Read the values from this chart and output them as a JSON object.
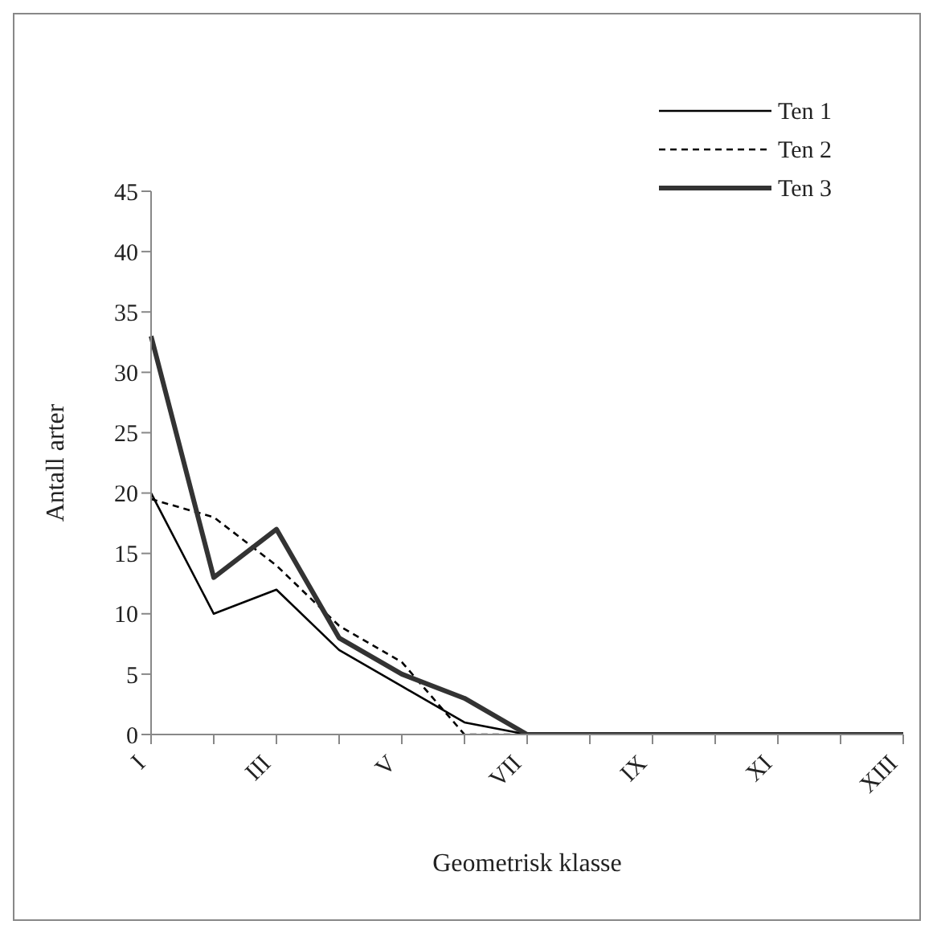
{
  "chart_data": {
    "type": "line",
    "xlabel": "Geometrisk klasse",
    "ylabel": "Antall arter",
    "categories": [
      "I",
      null,
      "III",
      null,
      "V",
      null,
      "VII",
      null,
      "IX",
      null,
      "XI",
      null,
      "XIII"
    ],
    "series": [
      {
        "name": "Ten 1",
        "color": "#000000",
        "line_style": "solid",
        "values": [
          20,
          10,
          12,
          7,
          4,
          1,
          0,
          0,
          0,
          0,
          0,
          0,
          0
        ]
      },
      {
        "name": "Ten 2",
        "color": "#000000",
        "line_style": "dashed",
        "values": [
          19.5,
          18,
          14,
          9,
          6,
          0,
          0,
          0,
          0,
          0,
          0,
          0,
          0
        ]
      },
      {
        "name": "Ten 3",
        "color": "#333333",
        "line_style": "solid",
        "values": [
          33,
          13,
          17,
          8,
          5,
          3,
          0,
          0,
          0,
          0,
          0,
          0,
          0
        ]
      }
    ],
    "ylim": [
      0,
      45
    ],
    "yticks": [
      0,
      5,
      10,
      15,
      20,
      25,
      30,
      35,
      40,
      45
    ],
    "grid": false,
    "legend": "top right",
    "marker": "none"
  }
}
